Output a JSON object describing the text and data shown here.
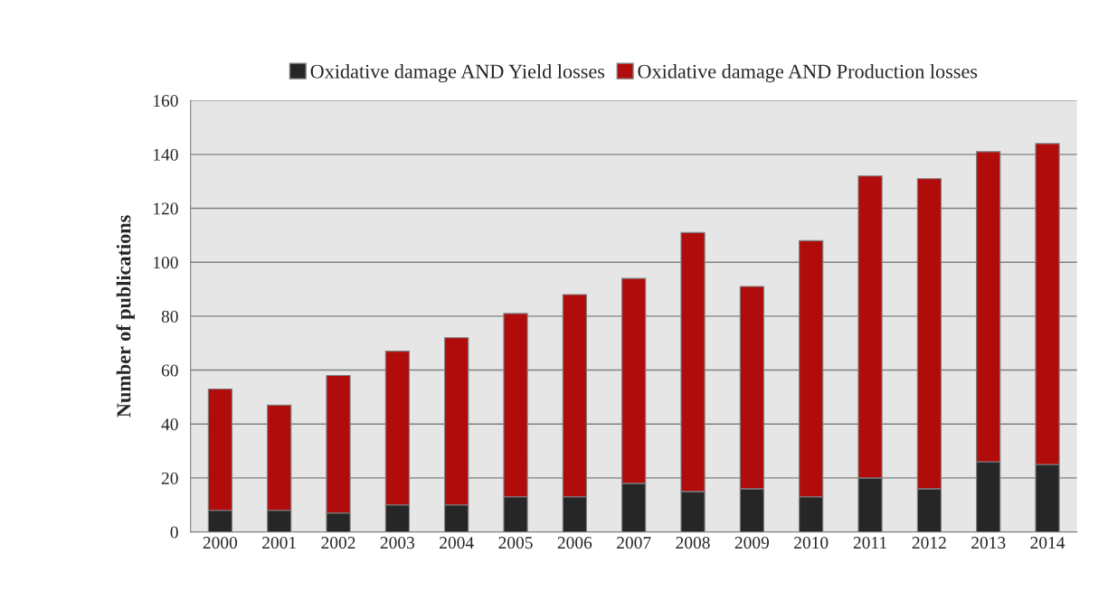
{
  "chart_data": {
    "type": "bar",
    "stacked": true,
    "ylabel": "Number of publications",
    "categories": [
      "2000",
      "2001",
      "2002",
      "2003",
      "2004",
      "2005",
      "2006",
      "2007",
      "2008",
      "2009",
      "2010",
      "2011",
      "2012",
      "2013",
      "2014"
    ],
    "series": [
      {
        "name": "Oxidative damage AND Yield losses",
        "color": "#262626",
        "values": [
          8,
          8,
          7,
          10,
          10,
          13,
          13,
          18,
          15,
          16,
          13,
          20,
          16,
          26,
          25
        ]
      },
      {
        "name": "Oxidative damage AND Production losses",
        "color": "#b10c0c",
        "values": [
          45,
          39,
          51,
          57,
          62,
          68,
          75,
          76,
          96,
          75,
          95,
          112,
          115,
          115,
          119
        ]
      }
    ],
    "ylim": [
      0,
      160
    ],
    "yticks": [
      0,
      20,
      40,
      60,
      80,
      100,
      120,
      140,
      160
    ],
    "grid": "y",
    "legend": "top"
  }
}
